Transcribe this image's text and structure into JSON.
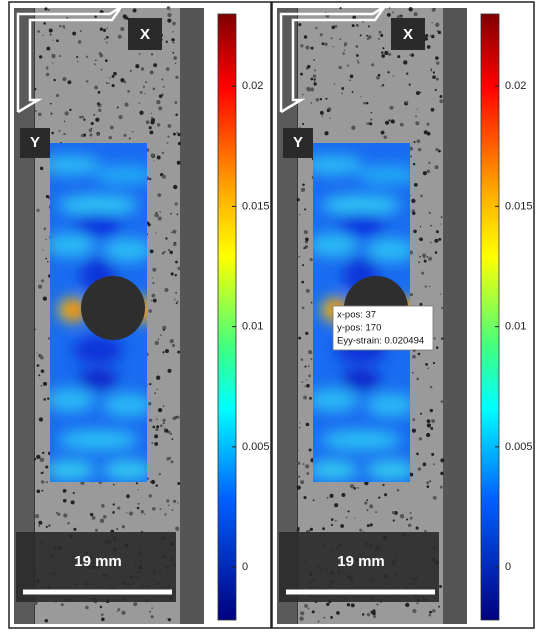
{
  "panels": [
    {
      "x_label": "X",
      "y_label": "Y",
      "scale_bar": "19 mm",
      "colorbar": {
        "lim": [
          -0.0022,
          0.023
        ],
        "ticks": [
          0.02,
          0.015,
          0.01,
          0.005,
          0
        ]
      }
    },
    {
      "x_label": "X",
      "y_label": "Y",
      "scale_bar": "19 mm",
      "colorbar": {
        "lim": [
          -0.0022,
          0.023
        ],
        "ticks": [
          0.02,
          0.015,
          0.01,
          0.005,
          0
        ]
      },
      "tooltip": [
        "x-pos: 37",
        "y-pos: 170",
        "Eyy-strain: 0.020494"
      ]
    }
  ]
}
